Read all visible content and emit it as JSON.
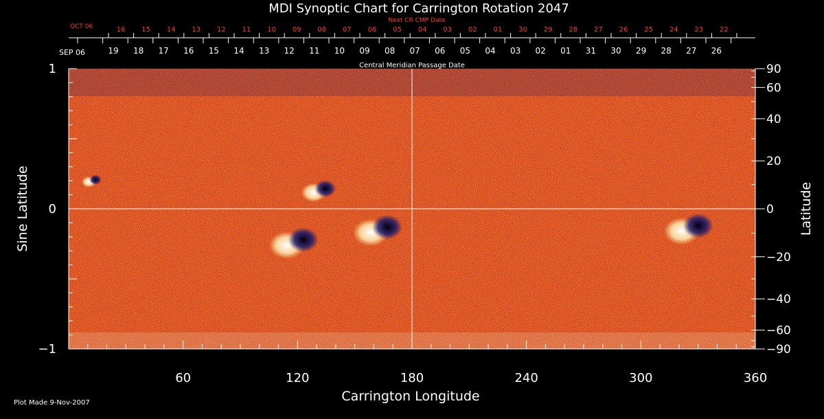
{
  "chart_data": {
    "type": "heatmap",
    "title": "MDI Synoptic Chart for Carrington Rotation 2047",
    "xlabel": "Carrington Longitude",
    "ylabel_left": "Sine Latitude",
    "ylabel_right": "Latitude",
    "xlim": [
      0,
      360
    ],
    "ylim": [
      -1,
      1
    ],
    "x_ticks": [
      60,
      120,
      180,
      240,
      300,
      360
    ],
    "y_ticks_left": [
      {
        "value": 1,
        "label": "1"
      },
      {
        "value": 0,
        "label": "0"
      },
      {
        "value": -1,
        "label": "−1"
      }
    ],
    "y_ticks_right": [
      "90",
      "60",
      "40",
      "20",
      "0",
      "−20",
      "−40",
      "−60",
      "−90"
    ],
    "top_axis_label": "Central Meridian Passage Date",
    "top_axis_start_label": "SEP 06",
    "top_axis_dates": [
      "19",
      "18",
      "17",
      "16",
      "15",
      "14",
      "13",
      "12",
      "11",
      "10",
      "09",
      "08",
      "07",
      "06",
      "05",
      "04",
      "03",
      "02",
      "01",
      "31",
      "30",
      "29",
      "28",
      "27",
      "26"
    ],
    "next_cr_label": "Next CR CMP Date",
    "next_cr_start_label": "OCT 06",
    "next_cr_dates": [
      "16",
      "15",
      "14",
      "13",
      "12",
      "11",
      "10",
      "09",
      "08",
      "07",
      "06",
      "05",
      "04",
      "03",
      "02",
      "01",
      "30",
      "29",
      "28",
      "27",
      "26",
      "25",
      "24",
      "23",
      "22"
    ],
    "gridlines": {
      "equator": true,
      "central_meridian_longitude": 180
    },
    "colors": {
      "background": "#d9481c",
      "positive_polarity": "#ffffff",
      "negative_polarity": "#1a1a6e",
      "next_cr_text": "#ff3b1f"
    },
    "active_regions": [
      {
        "longitude": 131,
        "sine_latitude": 0.13,
        "strength": 0.7
      },
      {
        "longitude": 118,
        "sine_latitude": -0.24,
        "strength": 1.0
      },
      {
        "longitude": 162,
        "sine_latitude": -0.15,
        "strength": 1.0
      },
      {
        "longitude": 325,
        "sine_latitude": -0.14,
        "strength": 1.0
      },
      {
        "longitude": 12,
        "sine_latitude": 0.2,
        "strength": 0.4
      }
    ]
  },
  "footer": {
    "plot_made": "Plot Made  9-Nov-2007"
  }
}
